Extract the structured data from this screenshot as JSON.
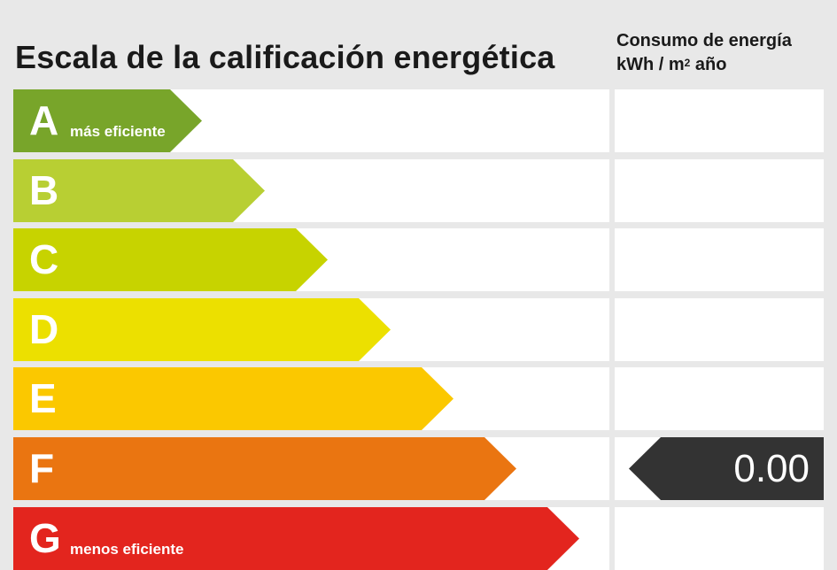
{
  "title": "Escala de la calificación energética",
  "consumption_header": {
    "line1": "Consumo de energía",
    "line2_prefix": "kWh / m",
    "line2_sup": "2",
    "line2_suffix": " año"
  },
  "classes": [
    {
      "letter": "A",
      "sublabel": "más eficiente",
      "color": "#78a52a"
    },
    {
      "letter": "B",
      "sublabel": "",
      "color": "#b8cf33"
    },
    {
      "letter": "C",
      "sublabel": "",
      "color": "#c7d300"
    },
    {
      "letter": "D",
      "sublabel": "",
      "color": "#ece000"
    },
    {
      "letter": "E",
      "sublabel": "",
      "color": "#fbc800"
    },
    {
      "letter": "F",
      "sublabel": "",
      "color": "#ea7511"
    },
    {
      "letter": "G",
      "sublabel": "menos eficiente",
      "color": "#e3251e"
    }
  ],
  "current": {
    "class": "F",
    "value": "0.00",
    "color": "#333333"
  }
}
